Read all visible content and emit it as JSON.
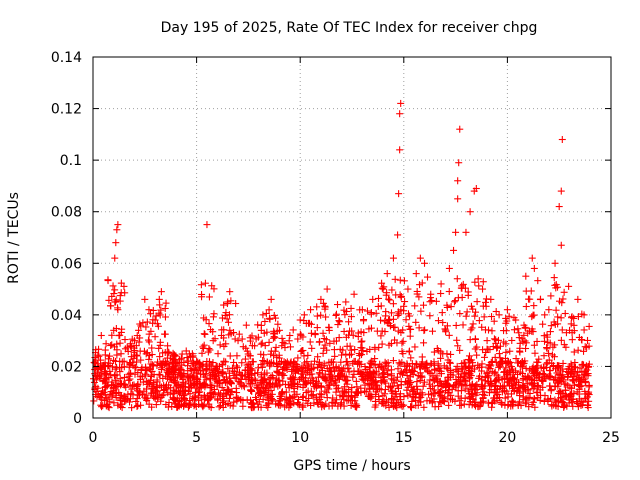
{
  "chart_data": {
    "type": "scatter",
    "title": "Day 195 of 2025, Rate Of TEC Index for receiver chpg",
    "xlabel": "GPS time / hours",
    "ylabel": "ROTI / TECUs",
    "xlim": [
      0,
      25
    ],
    "ylim": [
      0,
      0.14
    ],
    "xticks": [
      0,
      5,
      10,
      15,
      20,
      25
    ],
    "xtick_labels": [
      "0",
      "5",
      "10",
      "15",
      "20",
      "25"
    ],
    "yticks": [
      0,
      0.02,
      0.04,
      0.06,
      0.08,
      0.1,
      0.12,
      0.14
    ],
    "ytick_labels": [
      "0",
      "0.02",
      "0.04",
      "0.06",
      "0.08",
      "0.1",
      "0.12",
      "0.14"
    ],
    "grid": true,
    "marker": "+",
    "color": "#ff0000",
    "series": [
      {
        "name": "ROTI",
        "points": [
          [
            0.2,
            0.016
          ],
          [
            0.4,
            0.032
          ],
          [
            0.6,
            0.018
          ],
          [
            0.8,
            0.024
          ],
          [
            1.0,
            0.034
          ],
          [
            1.05,
            0.062
          ],
          [
            1.1,
            0.068
          ],
          [
            1.15,
            0.073
          ],
          [
            1.2,
            0.075
          ],
          [
            1.2,
            0.042
          ],
          [
            1.5,
            0.022
          ],
          [
            1.8,
            0.028
          ],
          [
            2.0,
            0.03
          ],
          [
            2.2,
            0.034
          ],
          [
            2.5,
            0.046
          ],
          [
            2.7,
            0.042
          ],
          [
            3.0,
            0.038
          ],
          [
            3.2,
            0.046
          ],
          [
            3.3,
            0.049
          ],
          [
            3.6,
            0.028
          ],
          [
            4.0,
            0.024
          ],
          [
            4.5,
            0.026
          ],
          [
            5.0,
            0.022
          ],
          [
            5.5,
            0.075
          ],
          [
            5.8,
            0.03
          ],
          [
            6.2,
            0.032
          ],
          [
            6.5,
            0.045
          ],
          [
            6.6,
            0.049
          ],
          [
            7.0,
            0.03
          ],
          [
            7.4,
            0.036
          ],
          [
            7.8,
            0.028
          ],
          [
            8.2,
            0.04
          ],
          [
            8.6,
            0.046
          ],
          [
            9.0,
            0.034
          ],
          [
            9.5,
            0.032
          ],
          [
            10.0,
            0.038
          ],
          [
            10.2,
            0.04
          ],
          [
            10.5,
            0.042
          ],
          [
            11.0,
            0.046
          ],
          [
            11.3,
            0.05
          ],
          [
            11.8,
            0.044
          ],
          [
            12.2,
            0.045
          ],
          [
            12.6,
            0.048
          ],
          [
            13.0,
            0.042
          ],
          [
            13.5,
            0.046
          ],
          [
            14.0,
            0.05
          ],
          [
            14.2,
            0.056
          ],
          [
            14.5,
            0.062
          ],
          [
            14.7,
            0.071
          ],
          [
            14.75,
            0.087
          ],
          [
            14.8,
            0.104
          ],
          [
            14.8,
            0.118
          ],
          [
            14.85,
            0.122
          ],
          [
            15.2,
            0.05
          ],
          [
            15.6,
            0.056
          ],
          [
            15.8,
            0.062
          ],
          [
            16.0,
            0.06
          ],
          [
            16.3,
            0.048
          ],
          [
            16.8,
            0.052
          ],
          [
            17.2,
            0.058
          ],
          [
            17.4,
            0.065
          ],
          [
            17.5,
            0.072
          ],
          [
            17.6,
            0.085
          ],
          [
            17.6,
            0.092
          ],
          [
            17.65,
            0.099
          ],
          [
            17.7,
            0.112
          ],
          [
            18.0,
            0.072
          ],
          [
            18.2,
            0.08
          ],
          [
            18.4,
            0.088
          ],
          [
            18.5,
            0.089
          ],
          [
            18.8,
            0.05
          ],
          [
            19.2,
            0.046
          ],
          [
            19.6,
            0.04
          ],
          [
            20.0,
            0.042
          ],
          [
            20.4,
            0.038
          ],
          [
            20.8,
            0.036
          ],
          [
            21.2,
            0.062
          ],
          [
            21.3,
            0.058
          ],
          [
            21.8,
            0.04
          ],
          [
            22.0,
            0.042
          ],
          [
            22.3,
            0.06
          ],
          [
            22.5,
            0.082
          ],
          [
            22.6,
            0.088
          ],
          [
            22.6,
            0.067
          ],
          [
            22.65,
            0.108
          ],
          [
            23.0,
            0.034
          ],
          [
            23.4,
            0.046
          ],
          [
            23.7,
            0.04
          ],
          [
            23.9,
            0.02
          ]
        ]
      }
    ]
  }
}
